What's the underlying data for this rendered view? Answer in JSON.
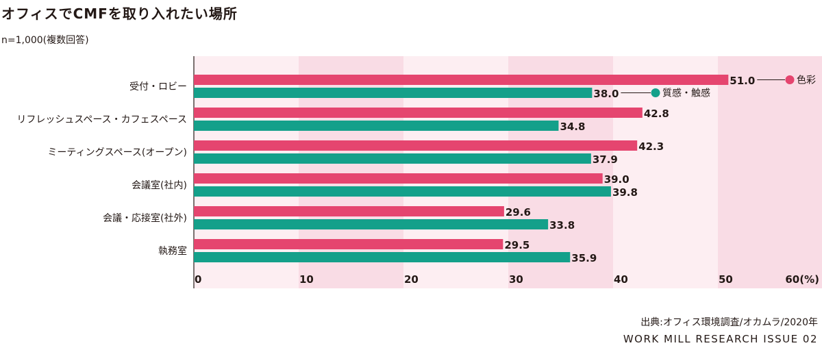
{
  "title": "オフィスでCMFを取り入れたい場所",
  "subtitle": "n=1,000(複数回答)",
  "source": "出典:オフィス環境調査/オカムラ/2020年",
  "footer": "WORK MILL RESEARCH ISSUE 02",
  "colors": {
    "series_color": "#E5456F",
    "series_texture": "#14A08A",
    "band_light": "#FDEEF2",
    "band_dark": "#F9DCE5"
  },
  "chart_data": {
    "type": "bar",
    "orientation": "horizontal",
    "categories": [
      "受付・ロビー",
      "リフレッシュスペース・カフェスペース",
      "ミーティングスペース(オープン)",
      "会議室(社内)",
      "会議・応接室(社外)",
      "執務室"
    ],
    "series": [
      {
        "name": "色彩",
        "values": [
          51.0,
          42.8,
          42.3,
          39.0,
          29.6,
          29.5
        ]
      },
      {
        "name": "質感・触感",
        "values": [
          38.0,
          34.8,
          37.9,
          39.8,
          33.8,
          35.9
        ]
      }
    ],
    "xlim": [
      0,
      60
    ],
    "xticks": [
      "0",
      "10",
      "20",
      "30",
      "40",
      "50",
      "60(%)"
    ],
    "legend_placement": "inline next to first category bars",
    "grid": "alternating vertical bands"
  }
}
